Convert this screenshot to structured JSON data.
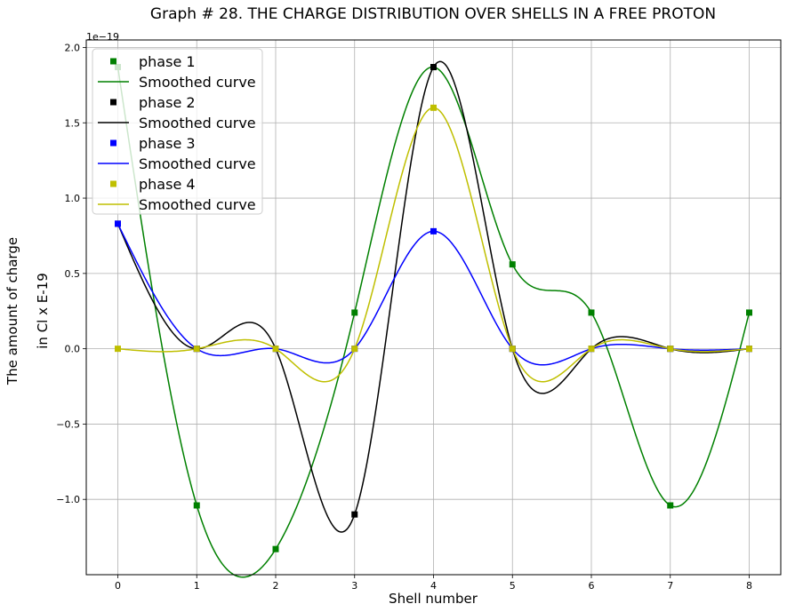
{
  "chart_data": {
    "type": "line",
    "title": "Graph # 28. THE CHARGE DISTRIBUTION OVER SHELLS IN A FREE PROTON",
    "xlabel": "Shell number",
    "ylabel_line1": "The amount of charge",
    "ylabel_line2": "in Cl x E-19",
    "y_multiplier": "1e−19",
    "xlim": [
      -0.4,
      8.4
    ],
    "ylim": [
      -1.5,
      2.05
    ],
    "x_ticks": [
      0,
      1,
      2,
      3,
      4,
      5,
      6,
      7,
      8
    ],
    "y_ticks": [
      -1.0,
      -0.5,
      0.0,
      0.5,
      1.0,
      1.5,
      2.0
    ],
    "y_tick_labels": [
      "−1.0",
      "−0.5",
      "0.0",
      "0.5",
      "1.0",
      "1.5",
      "2.0"
    ],
    "grid": true,
    "legend_position": "upper-left",
    "x": [
      0,
      1,
      2,
      3,
      4,
      5,
      6,
      7,
      8
    ],
    "series": [
      {
        "name": "phase 1",
        "curve_name": "Smoothed curve",
        "color": "#008000",
        "values": [
          1.87,
          -1.04,
          -1.33,
          0.24,
          1.87,
          0.56,
          0.24,
          -1.04,
          0.24
        ]
      },
      {
        "name": "phase 2",
        "curve_name": "Smoothed curve",
        "color": "#000000",
        "values": [
          0.83,
          0.0,
          0.0,
          -1.1,
          1.87,
          0.0,
          0.0,
          0.0,
          0.0
        ]
      },
      {
        "name": "phase 3",
        "curve_name": "Smoothed curve",
        "color": "#0000ff",
        "values": [
          0.83,
          0.0,
          0.0,
          0.0,
          0.78,
          0.0,
          0.0,
          0.0,
          0.0
        ]
      },
      {
        "name": "phase 4",
        "curve_name": "Smoothed curve",
        "color": "#bfbf00",
        "values": [
          0.0,
          0.0,
          0.0,
          0.0,
          1.6,
          0.0,
          0.0,
          0.0,
          0.0
        ]
      }
    ]
  }
}
